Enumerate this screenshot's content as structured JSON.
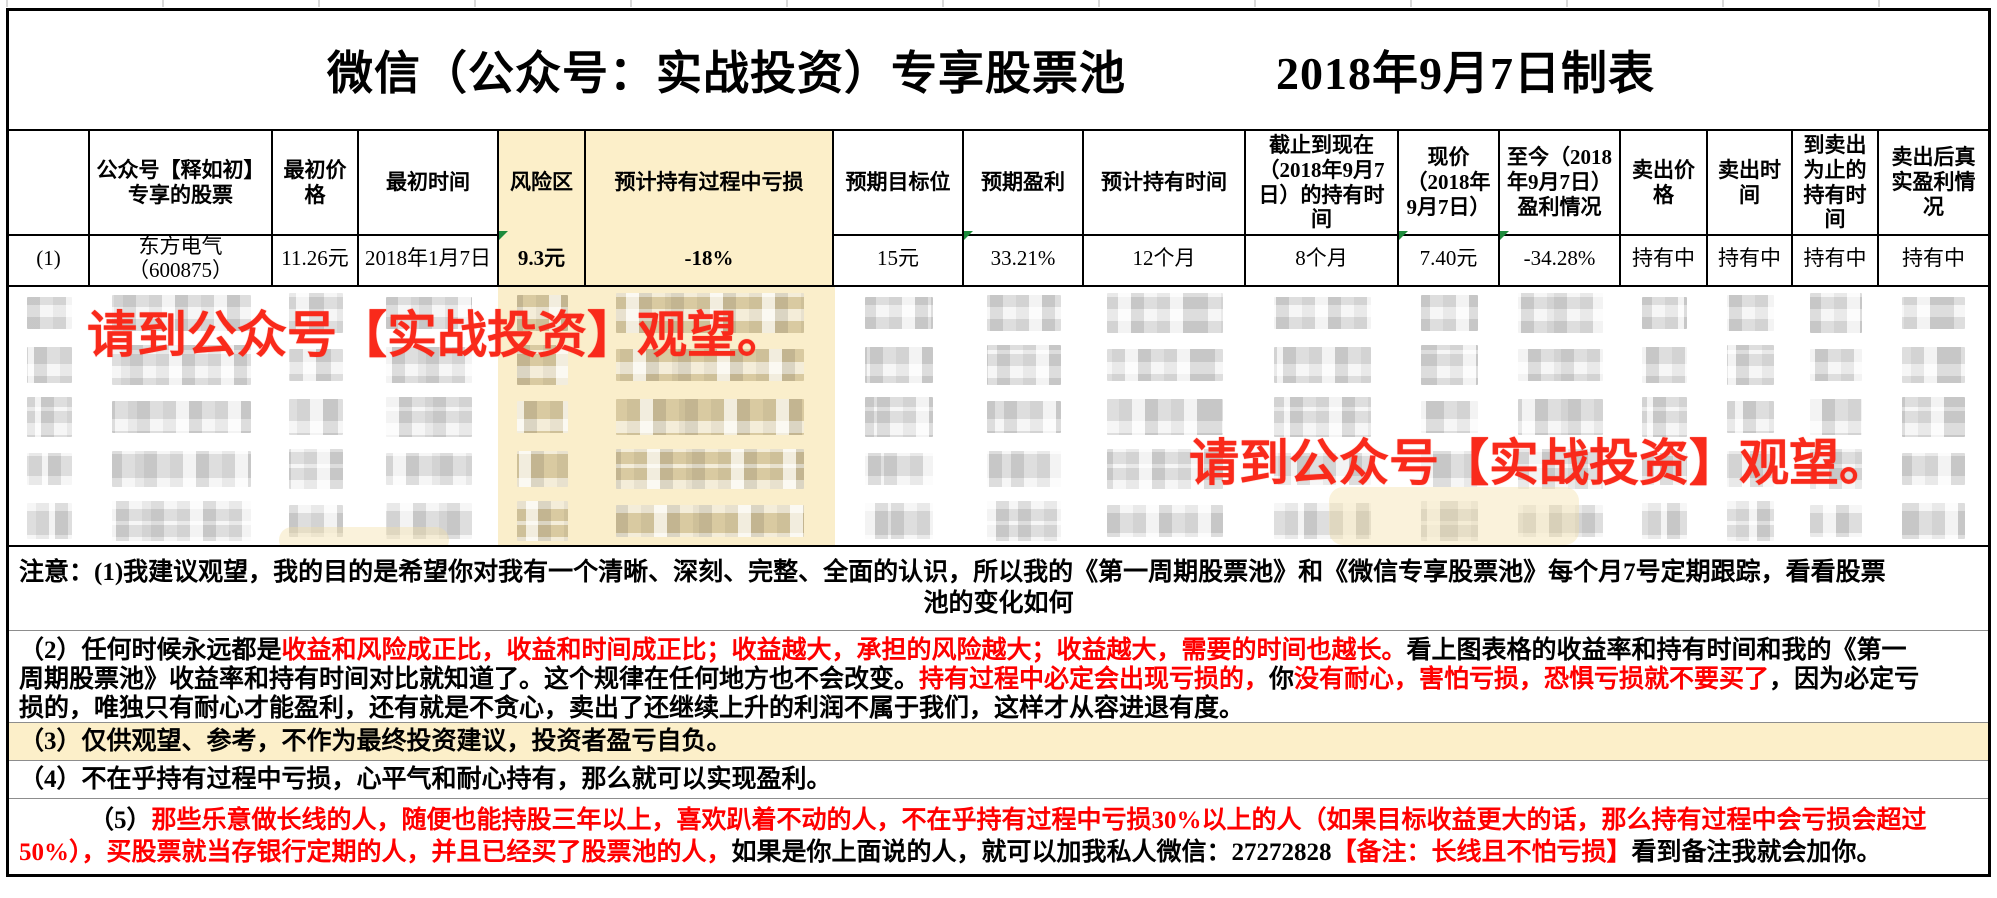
{
  "title": {
    "main": "微信（公众号：实战投资）专享股票池",
    "date": "2018年9月7日制表"
  },
  "table": {
    "headers": [
      "",
      "公众号【释如初】专享的股票",
      "最初价格",
      "最初时间",
      "风险区",
      "预计持有过程中亏损",
      "预期目标位",
      "预期盈利",
      "预计持有时间",
      "截止到现在（2018年9月7日）的持有时间",
      "现价（2018年9月7日）",
      "至今（2018年9月7日）盈利情况",
      "卖出价格",
      "卖出时间",
      "到卖出为止的持有时间",
      "卖出后真实盈利情况"
    ],
    "row1": {
      "num": "(1)",
      "stock_name": "东方电气",
      "stock_code": "（600875）",
      "initial_price": "11.26元",
      "initial_time": "2018年1月7日",
      "risk_zone": "9.3元",
      "expected_drawdown": "-18%",
      "target_price": "15元",
      "expected_profit": "33.21%",
      "expected_holding_time": "12个月",
      "holding_time_so_far": "8个月",
      "current_price": "7.40元",
      "profit_so_far": "-34.28%",
      "sell_price": "持有中",
      "sell_time": "持有中",
      "holding_time_until_sell": "持有中",
      "real_profit_after_sell": "持有中"
    }
  },
  "overlays": {
    "left": "请到公众号【实战投资】观望。",
    "right": "请到公众号【实战投资】观望。"
  },
  "notes": {
    "n1": {
      "line1": [
        [
          "注意：(1)我建议观望，我的目的是希望你对我有一个清晰、深刻、完整、全面的认识，所以我的《第一周期股票池》和《微信专享股票池》每个月7号定期跟踪，看看股票",
          "k"
        ]
      ],
      "line2": [
        [
          "池的变化如何",
          "k"
        ]
      ]
    },
    "n2": {
      "line1": [
        [
          "（2）任何时候永远都是",
          "k"
        ],
        [
          "收益和风险成正比，收益和时间成正比；收益越大，承担的风险越大；收益越大，需要的时间也越长。",
          "r"
        ],
        [
          "看上图表格的收益率和持有时间和我的《第一",
          "k"
        ]
      ],
      "line2": [
        [
          "周期股票池》收益率和持有时间对比就知道了。这个规律在任何地方也不会改变。",
          "k"
        ],
        [
          "持有过程中必定会出现亏损的，",
          "r"
        ],
        [
          "你",
          "k"
        ],
        [
          "没有耐心，害怕亏损，恐惧亏损就不要买了",
          "r"
        ],
        [
          "，因为必定亏",
          "k"
        ]
      ],
      "line3": [
        [
          "损的，唯独只有耐心才能盈利，还有就是不贪心，卖出了还继续上升的利润不属于我们，这样才从容进退有度。",
          "k"
        ]
      ]
    },
    "n3": {
      "line1": [
        [
          "（3）仅供观望、参考，不作为最终投资建议，投资者盈亏自负。",
          "k"
        ]
      ]
    },
    "n4": {
      "line1": [
        [
          "（4）不在乎持有过程中亏损，心平气和耐心持有，那么就可以实现盈利。",
          "k"
        ]
      ]
    },
    "n5": {
      "line1": [
        [
          "（5）",
          "k"
        ],
        [
          "那些乐意做长线的人，随便也能持股三年以上，喜欢趴着不动的人，不在乎持有过程中亏损30%以上的人（如果目标收益更大的话，那么持有过程中会亏损会超过",
          "r"
        ]
      ],
      "line2": [
        [
          "50%），买股票就当存银行定期的人，并且已经买了股票池的人，",
          "r"
        ],
        [
          "如果是你上面说的人，就可以加我私人微信：27272828",
          "k"
        ],
        [
          "【备注：长线且不怕亏损】",
          "r"
        ],
        [
          "看到备注我就会加你。",
          "k"
        ]
      ]
    }
  },
  "colors": {
    "highlight_yellow": "#fcefc9",
    "note_red": "#ff0000",
    "overlay_red": "#f92a1b",
    "error_indicator_green": "#1e8b3c"
  }
}
